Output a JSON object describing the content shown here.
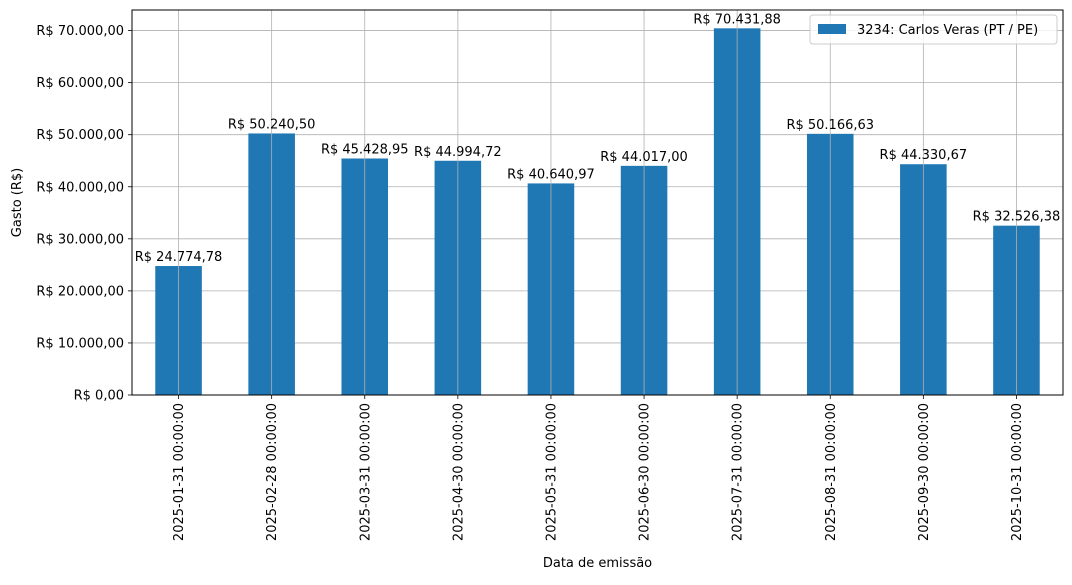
{
  "chart_data": {
    "type": "bar",
    "xlabel": "Data de emissão",
    "ylabel": "Gasto (R$)",
    "categories": [
      "2025-01-31 00:00:00",
      "2025-02-28 00:00:00",
      "2025-03-31 00:00:00",
      "2025-04-30 00:00:00",
      "2025-05-31 00:00:00",
      "2025-06-30 00:00:00",
      "2025-07-31 00:00:00",
      "2025-08-31 00:00:00",
      "2025-09-30 00:00:00",
      "2025-10-31 00:00:00"
    ],
    "series": [
      {
        "name": "3234: Carlos Veras (PT / PE)",
        "color": "#1f77b4",
        "values": [
          24774.78,
          50240.5,
          45428.95,
          44994.72,
          40640.97,
          44017.0,
          70431.88,
          50166.63,
          44330.67,
          32526.38
        ]
      }
    ],
    "data_labels": [
      "R$ 24.774,78",
      "R$ 50.240,50",
      "R$ 45.428,95",
      "R$ 44.994,72",
      "R$ 40.640,97",
      "R$ 44.017,00",
      "R$ 70.431,88",
      "R$ 50.166,63",
      "R$ 44.330,67",
      "R$ 32.526,38"
    ],
    "yticks": [
      0,
      10000,
      20000,
      30000,
      40000,
      50000,
      60000,
      70000
    ],
    "ytick_labels": [
      "R$ 0,00",
      "R$ 10.000,00",
      "R$ 20.000,00",
      "R$ 30.000,00",
      "R$ 40.000,00",
      "R$ 50.000,00",
      "R$ 60.000,00",
      "R$ 70.000,00"
    ],
    "ylim": [
      0,
      73953.47
    ],
    "grid": true,
    "legend_position": "top-right"
  }
}
